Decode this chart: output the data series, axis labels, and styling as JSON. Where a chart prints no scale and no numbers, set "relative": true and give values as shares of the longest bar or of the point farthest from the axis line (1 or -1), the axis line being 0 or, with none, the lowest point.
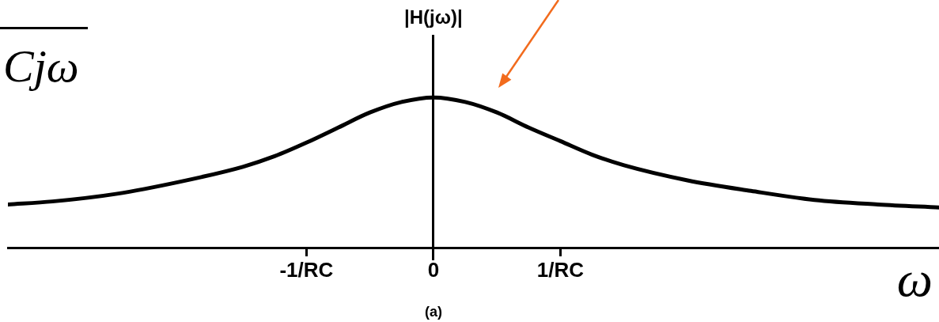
{
  "chart_data": {
    "type": "line",
    "ylabel": "|H(jω)|",
    "xlabel": "ω",
    "annotations": [
      "Cjω",
      "(a)"
    ],
    "relative": true,
    "x": [
      -3.35,
      -3,
      -2.5,
      -2,
      -1.5,
      -1.25,
      -1,
      -0.75,
      -0.5,
      -0.25,
      0,
      0.25,
      0.5,
      0.75,
      1,
      1.25,
      1.5,
      2,
      2.5,
      3,
      3.5,
      3.98
    ],
    "values": [
      0.29,
      0.31,
      0.36,
      0.44,
      0.54,
      0.61,
      0.7,
      0.8,
      0.9,
      0.97,
      1,
      0.97,
      0.9,
      0.8,
      0.71,
      0.62,
      0.55,
      0.45,
      0.38,
      0.32,
      0.29,
      0.27
    ],
    "color": "#000000",
    "xlim": [
      -3.35,
      3.98
    ],
    "xticks": [
      {
        "value": -1,
        "label": "-1/RC"
      },
      0,
      {
        "value": 1,
        "label": "1/RC"
      }
    ],
    "legend": false,
    "marker": "none",
    "line_style": "solid"
  }
}
